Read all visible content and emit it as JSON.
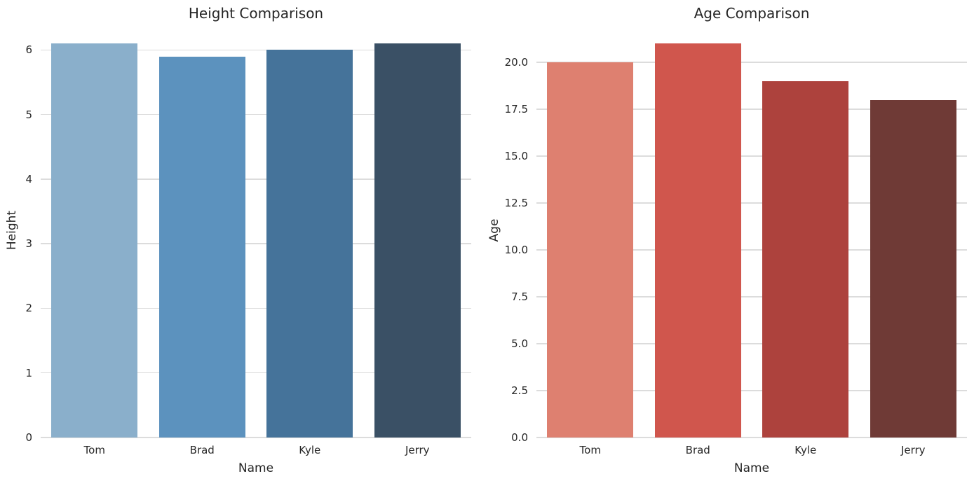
{
  "figure": {
    "background": "#ffffff",
    "text_color": "#262626",
    "grid_color": "#dcdcdc"
  },
  "chart_data": [
    {
      "type": "bar",
      "title": "Height Comparison",
      "xlabel": "Name",
      "ylabel": "Height",
      "categories": [
        "Tom",
        "Brad",
        "Kyle",
        "Jerry"
      ],
      "values": [
        6.1,
        5.9,
        6.0,
        6.1
      ],
      "bar_colors": [
        "#8AAFCB",
        "#5C92BE",
        "#45739A",
        "#3A5065"
      ],
      "ylim": [
        0,
        6.405
      ],
      "yticks": [
        0,
        1,
        2,
        3,
        4,
        5,
        6
      ],
      "ytick_labels": [
        "0",
        "1",
        "2",
        "3",
        "4",
        "5",
        "6"
      ],
      "grid": "horizontal",
      "legend": "none",
      "bar_width_fraction": 0.8
    },
    {
      "type": "bar",
      "title": "Age Comparison",
      "xlabel": "Name",
      "ylabel": "Age",
      "categories": [
        "Tom",
        "Brad",
        "Kyle",
        "Jerry"
      ],
      "values": [
        20,
        21,
        19,
        18
      ],
      "bar_colors": [
        "#DE8070",
        "#D0564D",
        "#AD423D",
        "#6F3A36"
      ],
      "ylim": [
        0,
        22.05
      ],
      "yticks": [
        0,
        2.5,
        5,
        7.5,
        10,
        12.5,
        15,
        17.5,
        20
      ],
      "ytick_labels": [
        "0.0",
        "2.5",
        "5.0",
        "7.5",
        "10.0",
        "12.5",
        "15.0",
        "17.5",
        "20.0"
      ],
      "grid": "horizontal",
      "legend": "none",
      "bar_width_fraction": 0.8
    }
  ]
}
